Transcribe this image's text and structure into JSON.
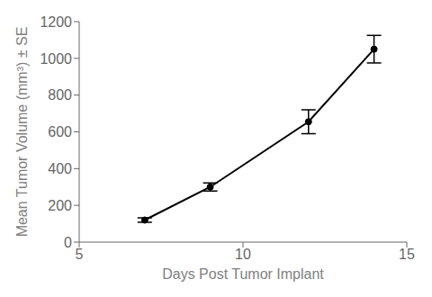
{
  "chart_data": {
    "type": "line",
    "x": [
      7,
      9,
      12,
      14
    ],
    "values": [
      120,
      300,
      655,
      1050
    ],
    "yerr": [
      12,
      22,
      65,
      75
    ],
    "xlabel": "Days Post Tumor Implant",
    "ylabel": "Mean Tumor Volume (mm³) ± SE",
    "xlim": [
      5,
      15
    ],
    "ylim": [
      0,
      1200
    ],
    "xticks": [
      5,
      10,
      15
    ],
    "yticks": [
      0,
      200,
      400,
      600,
      800,
      1000,
      1200
    ],
    "color": "#000000",
    "marker": "o",
    "grid": false
  }
}
